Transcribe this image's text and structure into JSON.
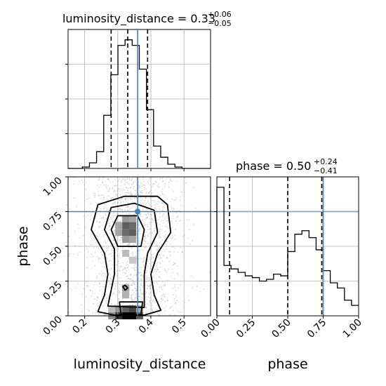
{
  "chart_data": {
    "type": "corner",
    "parameters": [
      "luminosity_distance",
      "phase"
    ],
    "truths": {
      "luminosity_distance": 0.36,
      "phase": 0.75
    },
    "grid": true,
    "panels": {
      "hist_luminosity_distance": {
        "type": "histogram",
        "title_name": "luminosity_distance = 0.33",
        "title_sup": "+0.06",
        "title_sub": "−0.05",
        "xlim": [
          0.15,
          0.58
        ],
        "bin_edges": [
          0.15,
          0.1715,
          0.193,
          0.2145,
          0.236,
          0.2575,
          0.279,
          0.3005,
          0.322,
          0.3435,
          0.365,
          0.3865,
          0.408,
          0.4295,
          0.451,
          0.4725,
          0.494,
          0.5155,
          0.537,
          0.5585,
          0.58
        ],
        "counts": [
          0,
          0,
          1,
          4,
          12,
          38,
          67,
          88,
          92,
          88,
          71,
          42,
          16,
          8,
          3,
          1,
          0,
          0,
          0,
          0
        ],
        "quantile_lines": [
          0.28,
          0.33,
          0.39
        ],
        "truth": 0.36
      },
      "hist_phase": {
        "type": "histogram",
        "title_name": "phase = 0.50",
        "title_sup": "+0.24",
        "title_sub": "−0.41",
        "xlim": [
          0,
          1
        ],
        "xticks": [
          "0.00",
          "0.25",
          "0.50",
          "0.75",
          "1.00"
        ],
        "xlabel": "phase",
        "bin_edges": [
          0,
          0.05,
          0.1,
          0.15,
          0.2,
          0.25,
          0.3,
          0.35,
          0.4,
          0.45,
          0.5,
          0.55,
          0.6,
          0.65,
          0.7,
          0.75,
          0.8,
          0.85,
          0.9,
          0.95,
          1.0
        ],
        "counts": [
          74,
          29,
          27,
          25,
          23,
          22,
          20,
          21,
          24,
          23,
          37,
          47,
          49,
          45,
          38,
          26,
          19,
          16,
          9,
          6
        ],
        "ylim": [
          0,
          80
        ],
        "quantile_lines": [
          0.09,
          0.5,
          0.74
        ],
        "truth": 0.75
      },
      "scatter": {
        "type": "2d-density-contour",
        "xlabel": "luminosity_distance",
        "ylabel": "phase",
        "xlim": [
          0.15,
          0.58
        ],
        "ylim": [
          0,
          1
        ],
        "xticks": [
          "0.2",
          "0.3",
          "0.4",
          "0.5"
        ],
        "yticks": [
          "0.00",
          "0.25",
          "0.50",
          "0.75",
          "1.00"
        ],
        "truth_point": [
          0.36,
          0.75
        ],
        "contours": [
          [
            [
              0.24,
              0.03
            ],
            [
              0.29,
              0.005
            ],
            [
              0.38,
              0.005
            ],
            [
              0.43,
              0.04
            ],
            [
              0.41,
              0.15
            ],
            [
              0.4,
              0.3
            ],
            [
              0.42,
              0.45
            ],
            [
              0.46,
              0.6
            ],
            [
              0.45,
              0.8
            ],
            [
              0.42,
              0.86
            ],
            [
              0.32,
              0.86
            ],
            [
              0.24,
              0.8
            ],
            [
              0.22,
              0.62
            ],
            [
              0.26,
              0.45
            ],
            [
              0.27,
              0.3
            ],
            [
              0.26,
              0.15
            ]
          ],
          [
            [
              0.27,
              0.07
            ],
            [
              0.38,
              0.06
            ],
            [
              0.38,
              0.3
            ],
            [
              0.39,
              0.45
            ],
            [
              0.42,
              0.6
            ],
            [
              0.41,
              0.76
            ],
            [
              0.35,
              0.81
            ],
            [
              0.28,
              0.78
            ],
            [
              0.26,
              0.62
            ],
            [
              0.29,
              0.48
            ],
            [
              0.29,
              0.3
            ]
          ],
          [
            [
              0.3,
              0.5
            ],
            [
              0.37,
              0.5
            ],
            [
              0.38,
              0.62
            ],
            [
              0.36,
              0.72
            ],
            [
              0.3,
              0.72
            ],
            [
              0.28,
              0.62
            ]
          ],
          [
            [
              0.305,
              0.1
            ],
            [
              0.31,
              0.01
            ],
            [
              0.37,
              0.01
            ],
            [
              0.375,
              0.1
            ]
          ],
          [
            [
              0.315,
              0.21
            ],
            [
              0.322,
              0.185
            ],
            [
              0.33,
              0.2
            ],
            [
              0.322,
              0.22
            ]
          ]
        ],
        "density_cells": [
          {
            "x": 0.324,
            "y": 0.55,
            "v": 0.35
          },
          {
            "x": 0.345,
            "y": 0.55,
            "v": 0.3
          },
          {
            "x": 0.303,
            "y": 0.6,
            "v": 0.3
          },
          {
            "x": 0.324,
            "y": 0.6,
            "v": 0.55
          },
          {
            "x": 0.345,
            "y": 0.6,
            "v": 0.6
          },
          {
            "x": 0.324,
            "y": 0.65,
            "v": 0.6
          },
          {
            "x": 0.345,
            "y": 0.65,
            "v": 0.55
          },
          {
            "x": 0.303,
            "y": 0.65,
            "v": 0.3
          },
          {
            "x": 0.324,
            "y": 0.7,
            "v": 0.35
          },
          {
            "x": 0.345,
            "y": 0.7,
            "v": 0.3
          },
          {
            "x": 0.324,
            "y": 0.45,
            "v": 0.2
          },
          {
            "x": 0.345,
            "y": 0.4,
            "v": 0.15
          },
          {
            "x": 0.324,
            "y": 0.2,
            "v": 0.3
          },
          {
            "x": 0.324,
            "y": 0.15,
            "v": 0.25
          },
          {
            "x": 0.324,
            "y": 0.05,
            "v": 0.6
          },
          {
            "x": 0.345,
            "y": 0.05,
            "v": 0.7
          },
          {
            "x": 0.303,
            "y": 0.05,
            "v": 0.4
          },
          {
            "x": 0.324,
            "y": 0.0,
            "v": 1.0
          },
          {
            "x": 0.345,
            "y": 0.0,
            "v": 1.0
          },
          {
            "x": 0.303,
            "y": 0.0,
            "v": 0.8
          },
          {
            "x": 0.366,
            "y": 0.0,
            "v": 0.6
          },
          {
            "x": 0.282,
            "y": 0.0,
            "v": 0.4
          },
          {
            "x": 0.282,
            "y": 0.05,
            "v": 0.2
          },
          {
            "x": 0.366,
            "y": 0.05,
            "v": 0.3
          }
        ],
        "scatter_ranges": [
          {
            "xmin": 0.22,
            "xmax": 0.47,
            "ymin": 0.0,
            "ymax": 1.0,
            "n": 1400
          },
          {
            "xmin": 0.17,
            "xmax": 0.52,
            "ymin": 0.0,
            "ymax": 1.0,
            "n": 300
          }
        ]
      }
    }
  }
}
